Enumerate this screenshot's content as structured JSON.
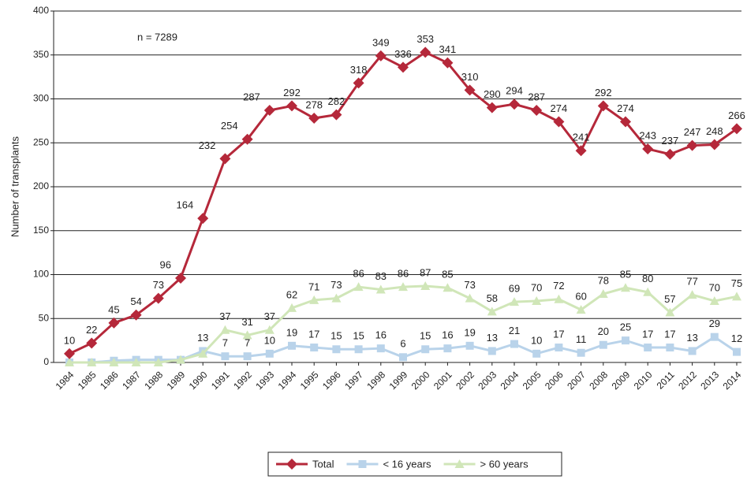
{
  "chart_data": {
    "type": "line",
    "y_label": "Number of transplants",
    "annotation": "n = 7289",
    "categories": [
      "1984",
      "1985",
      "1986",
      "1987",
      "1988",
      "1989",
      "1990",
      "1991",
      "1992",
      "1993",
      "1994",
      "1995",
      "1996",
      "1997",
      "1998",
      "1999",
      "2000",
      "2001",
      "2002",
      "2003",
      "2004",
      "2005",
      "2006",
      "2007",
      "2008",
      "2009",
      "2010",
      "2011",
      "2012",
      "2013",
      "2014"
    ],
    "ylim": [
      0,
      400
    ],
    "yticks": [
      0,
      50,
      100,
      150,
      200,
      250,
      300,
      350,
      400
    ],
    "grid": true,
    "series": [
      {
        "name": "Total",
        "color": "#b5283a",
        "marker": "diamond",
        "values": [
          10,
          22,
          45,
          54,
          73,
          96,
          164,
          232,
          254,
          287,
          292,
          278,
          282,
          318,
          349,
          336,
          353,
          341,
          310,
          290,
          294,
          287,
          274,
          241,
          292,
          274,
          243,
          237,
          247,
          248,
          266
        ],
        "value_labels": [
          "10",
          "22",
          "45",
          "54",
          "73",
          "96",
          "164",
          "232",
          "254",
          "287",
          "292",
          "278",
          "282",
          "318",
          "349",
          "336",
          "353",
          "341",
          "310",
          "290",
          "294",
          "287",
          "274",
          "241",
          "292",
          "274",
          "243",
          "237",
          "247",
          "248",
          "266"
        ]
      },
      {
        "name": "< 16 years",
        "color": "#b9d3ea",
        "marker": "square",
        "values": [
          0,
          0,
          2,
          3,
          3,
          3,
          13,
          7,
          7,
          10,
          19,
          17,
          15,
          15,
          16,
          6,
          15,
          16,
          19,
          13,
          21,
          10,
          17,
          11,
          20,
          25,
          17,
          17,
          13,
          29,
          12
        ],
        "value_labels": [
          null,
          null,
          null,
          null,
          null,
          null,
          "13",
          "7",
          "7",
          "10",
          "19",
          "17",
          "15",
          "15",
          "16",
          "6",
          "15",
          "16",
          "19",
          "13",
          "21",
          "10",
          "17",
          "11",
          "20",
          "25",
          "17",
          "17",
          "13",
          "29",
          "12"
        ]
      },
      {
        "name": "> 60 years",
        "color": "#d0e6b8",
        "marker": "triangle",
        "values": [
          0,
          0,
          0,
          0,
          0,
          3,
          10,
          37,
          31,
          37,
          62,
          71,
          73,
          86,
          83,
          86,
          87,
          85,
          73,
          58,
          69,
          70,
          72,
          60,
          78,
          85,
          80,
          57,
          77,
          70,
          75
        ],
        "value_labels": [
          null,
          null,
          null,
          null,
          null,
          null,
          null,
          "37",
          "31",
          "37",
          "62",
          "71",
          "73",
          "86",
          "83",
          "86",
          "87",
          "85",
          "73",
          "58",
          "69",
          "70",
          "72",
          "60",
          "78",
          "85",
          "80",
          "57",
          "77",
          "70",
          "75"
        ]
      }
    ]
  }
}
